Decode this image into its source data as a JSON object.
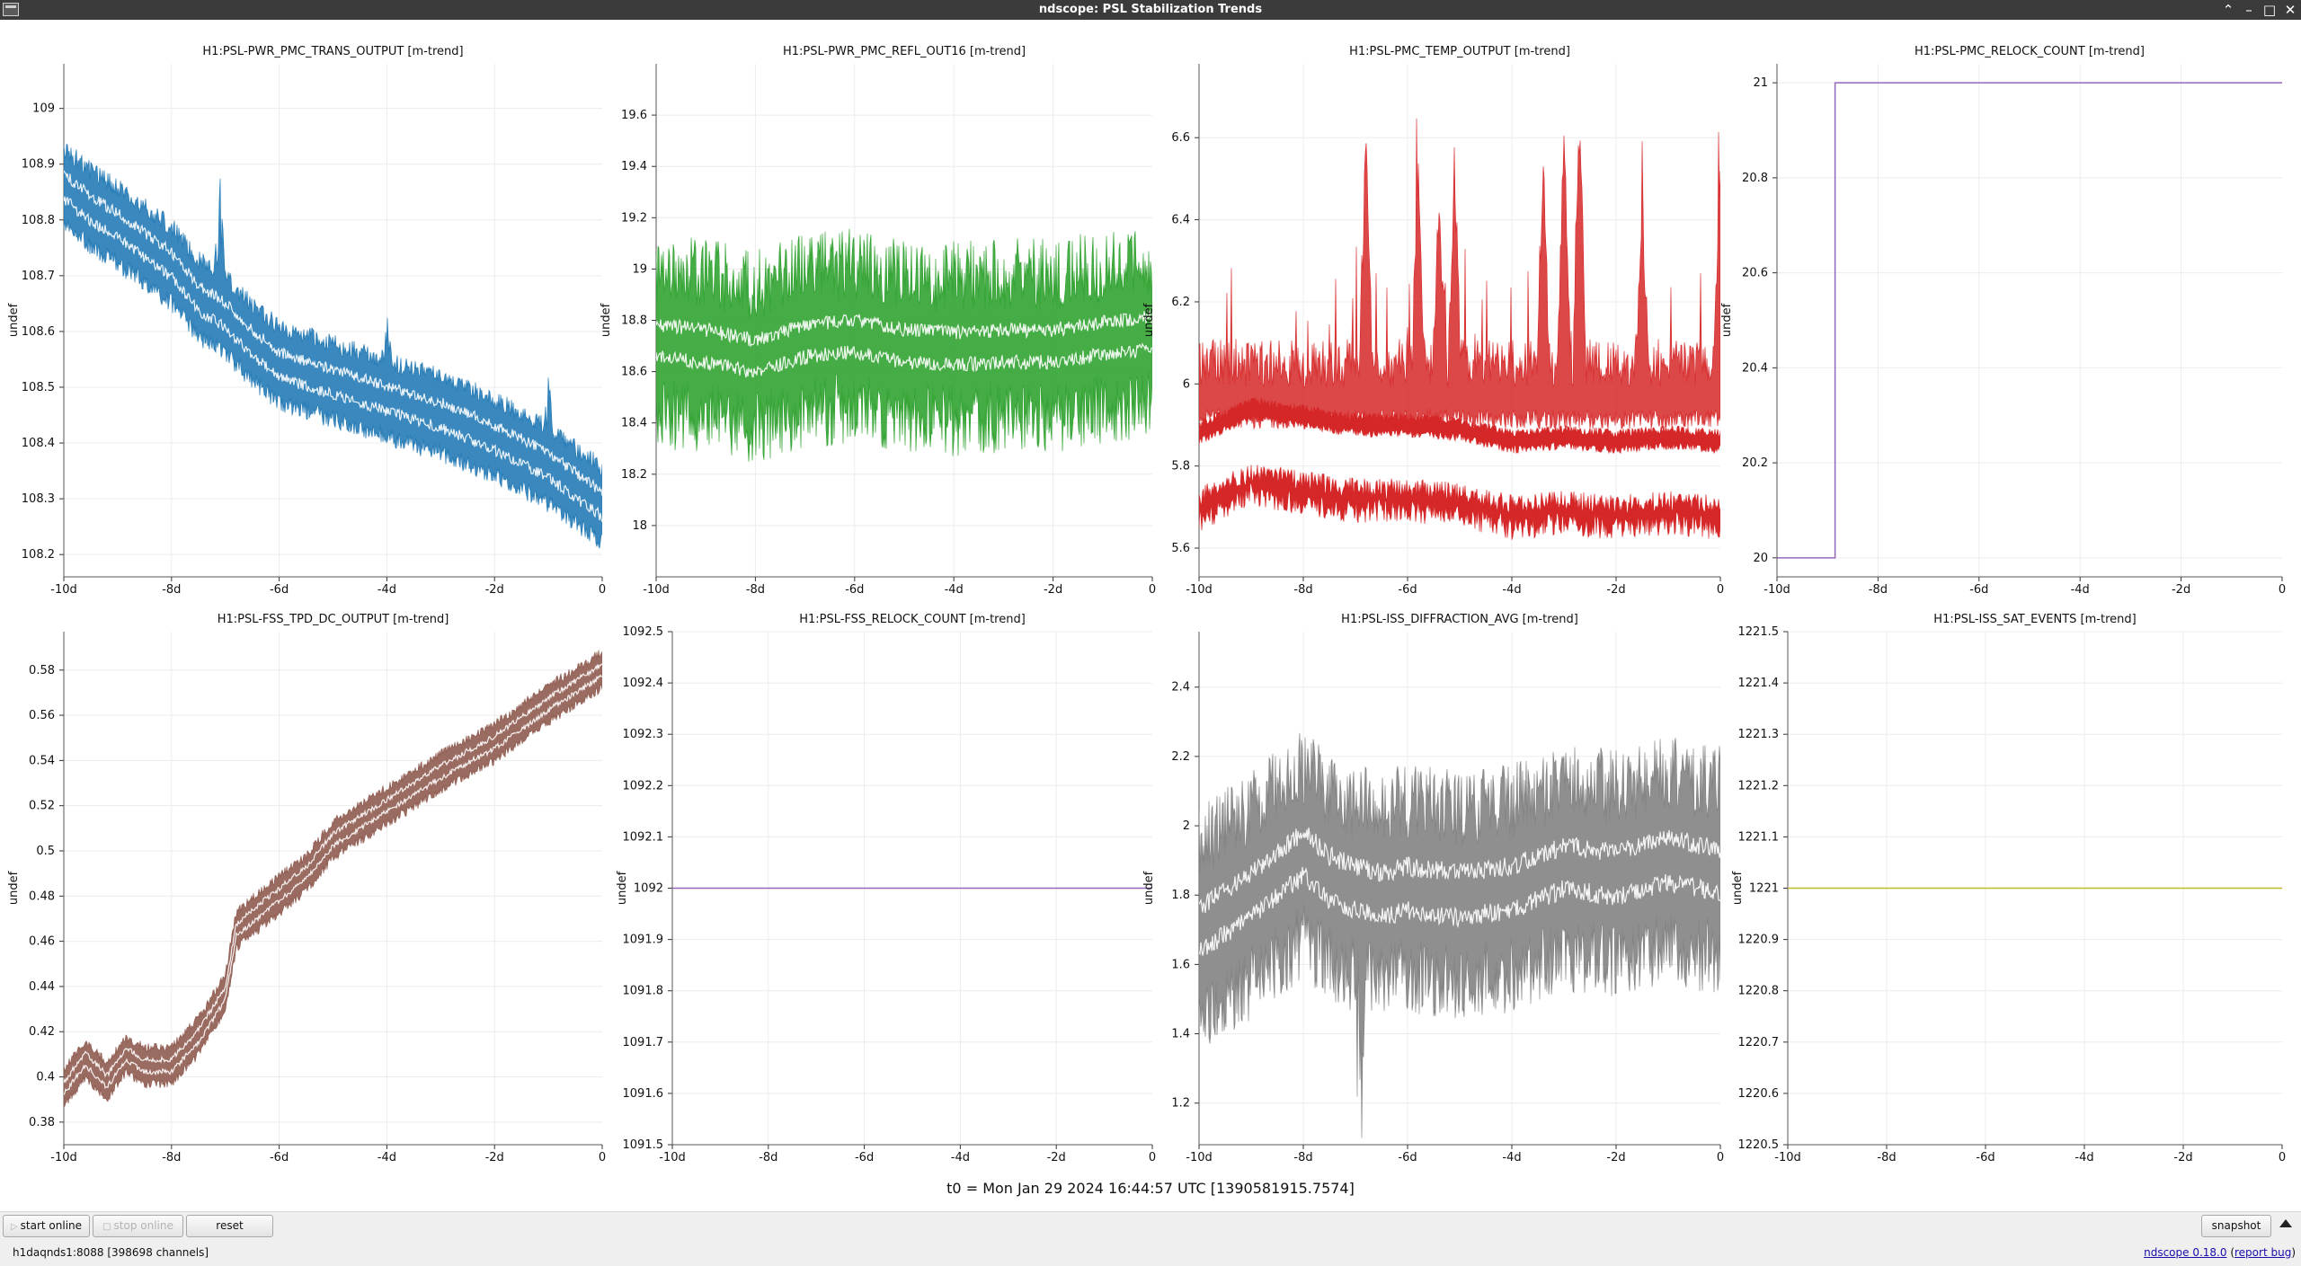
{
  "window": {
    "title": "ndscope: PSL Stabilization Trends"
  },
  "plots": [
    {
      "title": "H1:PSL-PWR_PMC_TRANS_OUTPUT [m-trend]",
      "color": "#1f77b4",
      "ylabel": "undef",
      "yticks": [
        "108.2",
        "108.3",
        "108.4",
        "108.5",
        "108.6",
        "108.7",
        "108.8",
        "108.9",
        "109"
      ],
      "xticks": [
        "-10d",
        "-8d",
        "-6d",
        "-4d",
        "-2d",
        "0"
      ],
      "type": "band",
      "ylim": [
        108.16,
        109.08
      ],
      "center": [
        [
          -10,
          108.86
        ],
        [
          -9.5,
          108.82
        ],
        [
          -9,
          108.79
        ],
        [
          -8,
          108.72
        ],
        [
          -7.5,
          108.66
        ],
        [
          -7,
          108.63
        ],
        [
          -6.5,
          108.58
        ],
        [
          -6,
          108.54
        ],
        [
          -5,
          108.51
        ],
        [
          -4,
          108.48
        ],
        [
          -3,
          108.45
        ],
        [
          -2,
          108.41
        ],
        [
          -1,
          108.36
        ],
        [
          0,
          108.29
        ]
      ],
      "spread": 0.05,
      "noise": 0.035,
      "spikes": [
        [
          -7.1,
          0.2
        ],
        [
          -4,
          0.1
        ],
        [
          -1,
          0.1
        ]
      ]
    },
    {
      "title": "H1:PSL-PWR_PMC_REFL_OUT16 [m-trend]",
      "color": "#2ca02c",
      "ylabel": "undef",
      "yticks": [
        "18",
        "18.2",
        "18.4",
        "18.6",
        "18.8",
        "19",
        "19.2",
        "19.4",
        "19.6"
      ],
      "xticks": [
        "-10d",
        "-8d",
        "-6d",
        "-4d",
        "-2d",
        "0"
      ],
      "type": "band",
      "ylim": [
        17.8,
        19.8
      ],
      "center": [
        [
          -10,
          18.72
        ],
        [
          -9,
          18.7
        ],
        [
          -8,
          18.66
        ],
        [
          -7,
          18.72
        ],
        [
          -6,
          18.74
        ],
        [
          -5,
          18.7
        ],
        [
          -4,
          18.69
        ],
        [
          -3,
          18.7
        ],
        [
          -2,
          18.7
        ],
        [
          -1,
          18.73
        ],
        [
          0,
          18.75
        ]
      ],
      "spread": 0.14,
      "noise": 0.28,
      "spikes": []
    },
    {
      "title": "H1:PSL-PMC_TEMP_OUTPUT [m-trend]",
      "color": "#d62728",
      "ylabel": "undef",
      "yticks": [
        "5.6",
        "5.8",
        "6",
        "6.2",
        "6.4",
        "6.6"
      ],
      "xticks": [
        "-10d",
        "-8d",
        "-6d",
        "-4d",
        "-2d",
        "0"
      ],
      "type": "temp",
      "ylim": [
        5.53,
        6.78
      ],
      "center": [
        [
          -10,
          5.78
        ],
        [
          -9,
          5.84
        ],
        [
          -8,
          5.82
        ],
        [
          -7,
          5.8
        ],
        [
          -6,
          5.8
        ],
        [
          -5,
          5.79
        ],
        [
          -4,
          5.76
        ],
        [
          -3,
          5.77
        ],
        [
          -2,
          5.76
        ],
        [
          -1,
          5.77
        ],
        [
          0,
          5.76
        ]
      ],
      "spread": 0.055,
      "noise": 0.05,
      "spikes": [
        [
          -6.8,
          0.55
        ],
        [
          -5.8,
          0.5
        ],
        [
          -5.4,
          0.4
        ],
        [
          -5.1,
          0.5
        ],
        [
          -3.4,
          0.5
        ],
        [
          -3,
          0.6
        ],
        [
          -2.7,
          0.6
        ],
        [
          -1.5,
          0.4
        ],
        [
          0,
          0.5
        ]
      ]
    },
    {
      "title": "H1:PSL-PMC_RELOCK_COUNT [m-trend]",
      "color": "#9467bd",
      "ylabel": "undef",
      "yticks": [
        "20",
        "20.2",
        "20.4",
        "20.6",
        "20.8",
        "21"
      ],
      "xticks": [
        "-10d",
        "-8d",
        "-6d",
        "-4d",
        "-2d",
        "0"
      ],
      "type": "step",
      "ylim": [
        19.96,
        21.04
      ],
      "step_x": -8.85,
      "values": [
        20,
        21
      ]
    },
    {
      "title": "H1:PSL-FSS_TPD_DC_OUTPUT [m-trend]",
      "color": "#8c564b",
      "ylabel": "undef",
      "yticks": [
        "0.38",
        "0.4",
        "0.42",
        "0.44",
        "0.46",
        "0.48",
        "0.5",
        "0.52",
        "0.54",
        "0.56",
        "0.58"
      ],
      "xticks": [
        "-10d",
        "-8d",
        "-6d",
        "-4d",
        "-2d",
        "0"
      ],
      "type": "band",
      "ylim": [
        0.37,
        0.597
      ],
      "center": [
        [
          -10,
          0.395
        ],
        [
          -9.6,
          0.408
        ],
        [
          -9.2,
          0.398
        ],
        [
          -8.85,
          0.41
        ],
        [
          -8.5,
          0.405
        ],
        [
          -8,
          0.405
        ],
        [
          -7.5,
          0.418
        ],
        [
          -7,
          0.437
        ],
        [
          -6.8,
          0.465
        ],
        [
          -6.3,
          0.475
        ],
        [
          -5.5,
          0.49
        ],
        [
          -5,
          0.505
        ],
        [
          -4,
          0.52
        ],
        [
          -3,
          0.535
        ],
        [
          -2,
          0.548
        ],
        [
          -1,
          0.565
        ],
        [
          0,
          0.58
        ]
      ],
      "spread": 0.006,
      "noise": 0.004,
      "spikes": []
    },
    {
      "title": "H1:PSL-FSS_RELOCK_COUNT [m-trend]",
      "color": "#9467bd",
      "ylabel": "undef",
      "yticks": [
        "1091.5",
        "1091.6",
        "1091.7",
        "1091.8",
        "1091.9",
        "1092",
        "1092.1",
        "1092.2",
        "1092.3",
        "1092.4",
        "1092.5"
      ],
      "xticks": [
        "-10d",
        "-8d",
        "-6d",
        "-4d",
        "-2d",
        "0"
      ],
      "type": "flat",
      "ylim": [
        1091.5,
        1092.5
      ],
      "values": [
        1092
      ]
    },
    {
      "title": "H1:PSL-ISS_DIFFRACTION_AVG [m-trend]",
      "color": "#7f7f7f",
      "ylabel": "undef",
      "yticks": [
        "1.2",
        "1.4",
        "1.6",
        "1.8",
        "2",
        "2.2",
        "2.4"
      ],
      "xticks": [
        "-10d",
        "-8d",
        "-6d",
        "-4d",
        "-2d",
        "0"
      ],
      "type": "band",
      "ylim": [
        1.08,
        2.56
      ],
      "center": [
        [
          -10,
          1.7
        ],
        [
          -9,
          1.8
        ],
        [
          -8,
          1.92
        ],
        [
          -7.5,
          1.85
        ],
        [
          -7,
          1.82
        ],
        [
          -6.5,
          1.8
        ],
        [
          -6,
          1.82
        ],
        [
          -5,
          1.8
        ],
        [
          -4,
          1.82
        ],
        [
          -3,
          1.88
        ],
        [
          -2,
          1.86
        ],
        [
          -1,
          1.9
        ],
        [
          0,
          1.87
        ]
      ],
      "spread": 0.14,
      "noise": 0.22,
      "spikes": [
        [
          -6.9,
          -0.6
        ]
      ]
    },
    {
      "title": "H1:PSL-ISS_SAT_EVENTS [m-trend]",
      "color": "#bcbd22",
      "ylabel": "undef",
      "yticks": [
        "1220.5",
        "1220.6",
        "1220.7",
        "1220.8",
        "1220.9",
        "1221",
        "1221.1",
        "1221.2",
        "1221.3",
        "1221.4",
        "1221.5"
      ],
      "xticks": [
        "-10d",
        "-8d",
        "-6d",
        "-4d",
        "-2d",
        "0"
      ],
      "type": "flat",
      "ylim": [
        1220.5,
        1221.5
      ],
      "values": [
        1221
      ]
    }
  ],
  "t0_label": "t0 = Mon Jan 29 2024 16:44:57 UTC [1390581915.7574]",
  "toolbar": {
    "start_online": "start online",
    "stop_online": "stop online",
    "reset": "reset",
    "snapshot": "snapshot"
  },
  "status": {
    "server": "h1daqnds1:8088  [398698 channels]",
    "version": "ndscope 0.18.0",
    "report": "report bug"
  }
}
